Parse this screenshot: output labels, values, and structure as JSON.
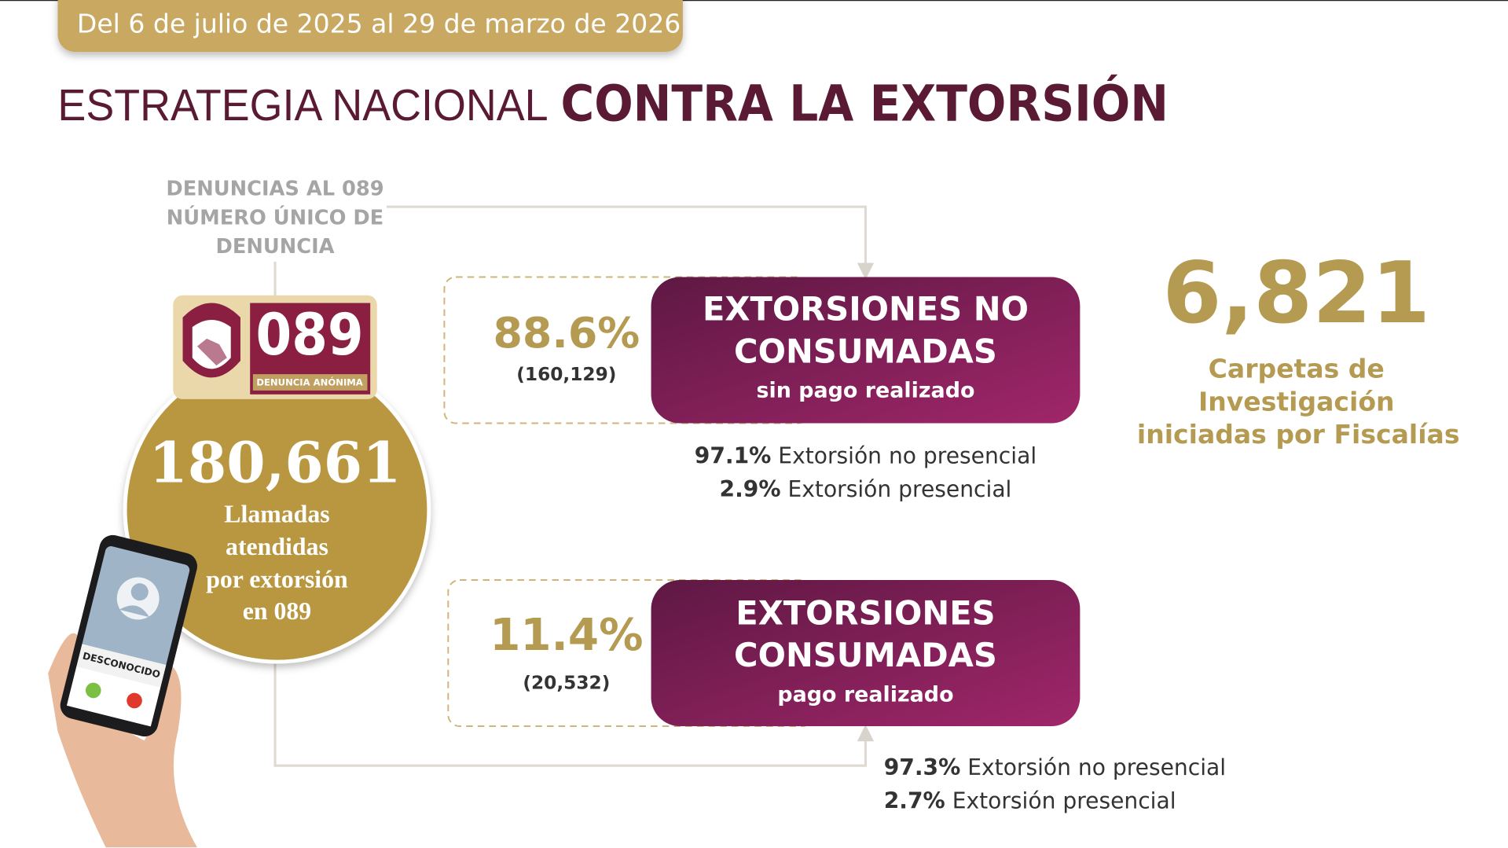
{
  "header": {
    "date_range": "Del 6 de julio de 2025 al 29 de marzo de 2026",
    "title_light": "ESTRATEGIA NACIONAL",
    "title_bold": "CONTRA LA EXTORSIÓN"
  },
  "source": {
    "lines": [
      "DENUNCIAS AL 089",
      "NÚMERO ÚNICO DE",
      "DENUNCIA"
    ]
  },
  "logo": {
    "number": "089",
    "caption": "DENUNCIA ANÓNIMA"
  },
  "calls": {
    "total": "180,661",
    "label_lines": [
      "Llamadas",
      "atendidas",
      "por extorsión",
      "en 089"
    ]
  },
  "phone": {
    "caller": "DESCONOCIDO"
  },
  "outcomes": [
    {
      "percent": "88.6%",
      "count": "(160,129)",
      "title_lines": [
        "EXTORSIONES NO",
        "CONSUMADAS"
      ],
      "subtitle": "sin pago realizado",
      "breakdown": [
        {
          "percent": "97.1%",
          "label": "Extorsión no presencial"
        },
        {
          "percent": "2.9%",
          "label": "Extorsión presencial"
        }
      ]
    },
    {
      "percent": "11.4%",
      "count": "(20,532)",
      "title_lines": [
        "EXTORSIONES",
        "CONSUMADAS"
      ],
      "subtitle": "pago realizado",
      "breakdown": [
        {
          "percent": "97.3%",
          "label": "Extorsión no presencial"
        },
        {
          "percent": "2.7%",
          "label": "Extorsión presencial"
        }
      ]
    }
  ],
  "investigations": {
    "total": "6,821",
    "label_lines": [
      "Carpetas de",
      "Investigación",
      "iniciadas por Fiscalías"
    ]
  }
}
